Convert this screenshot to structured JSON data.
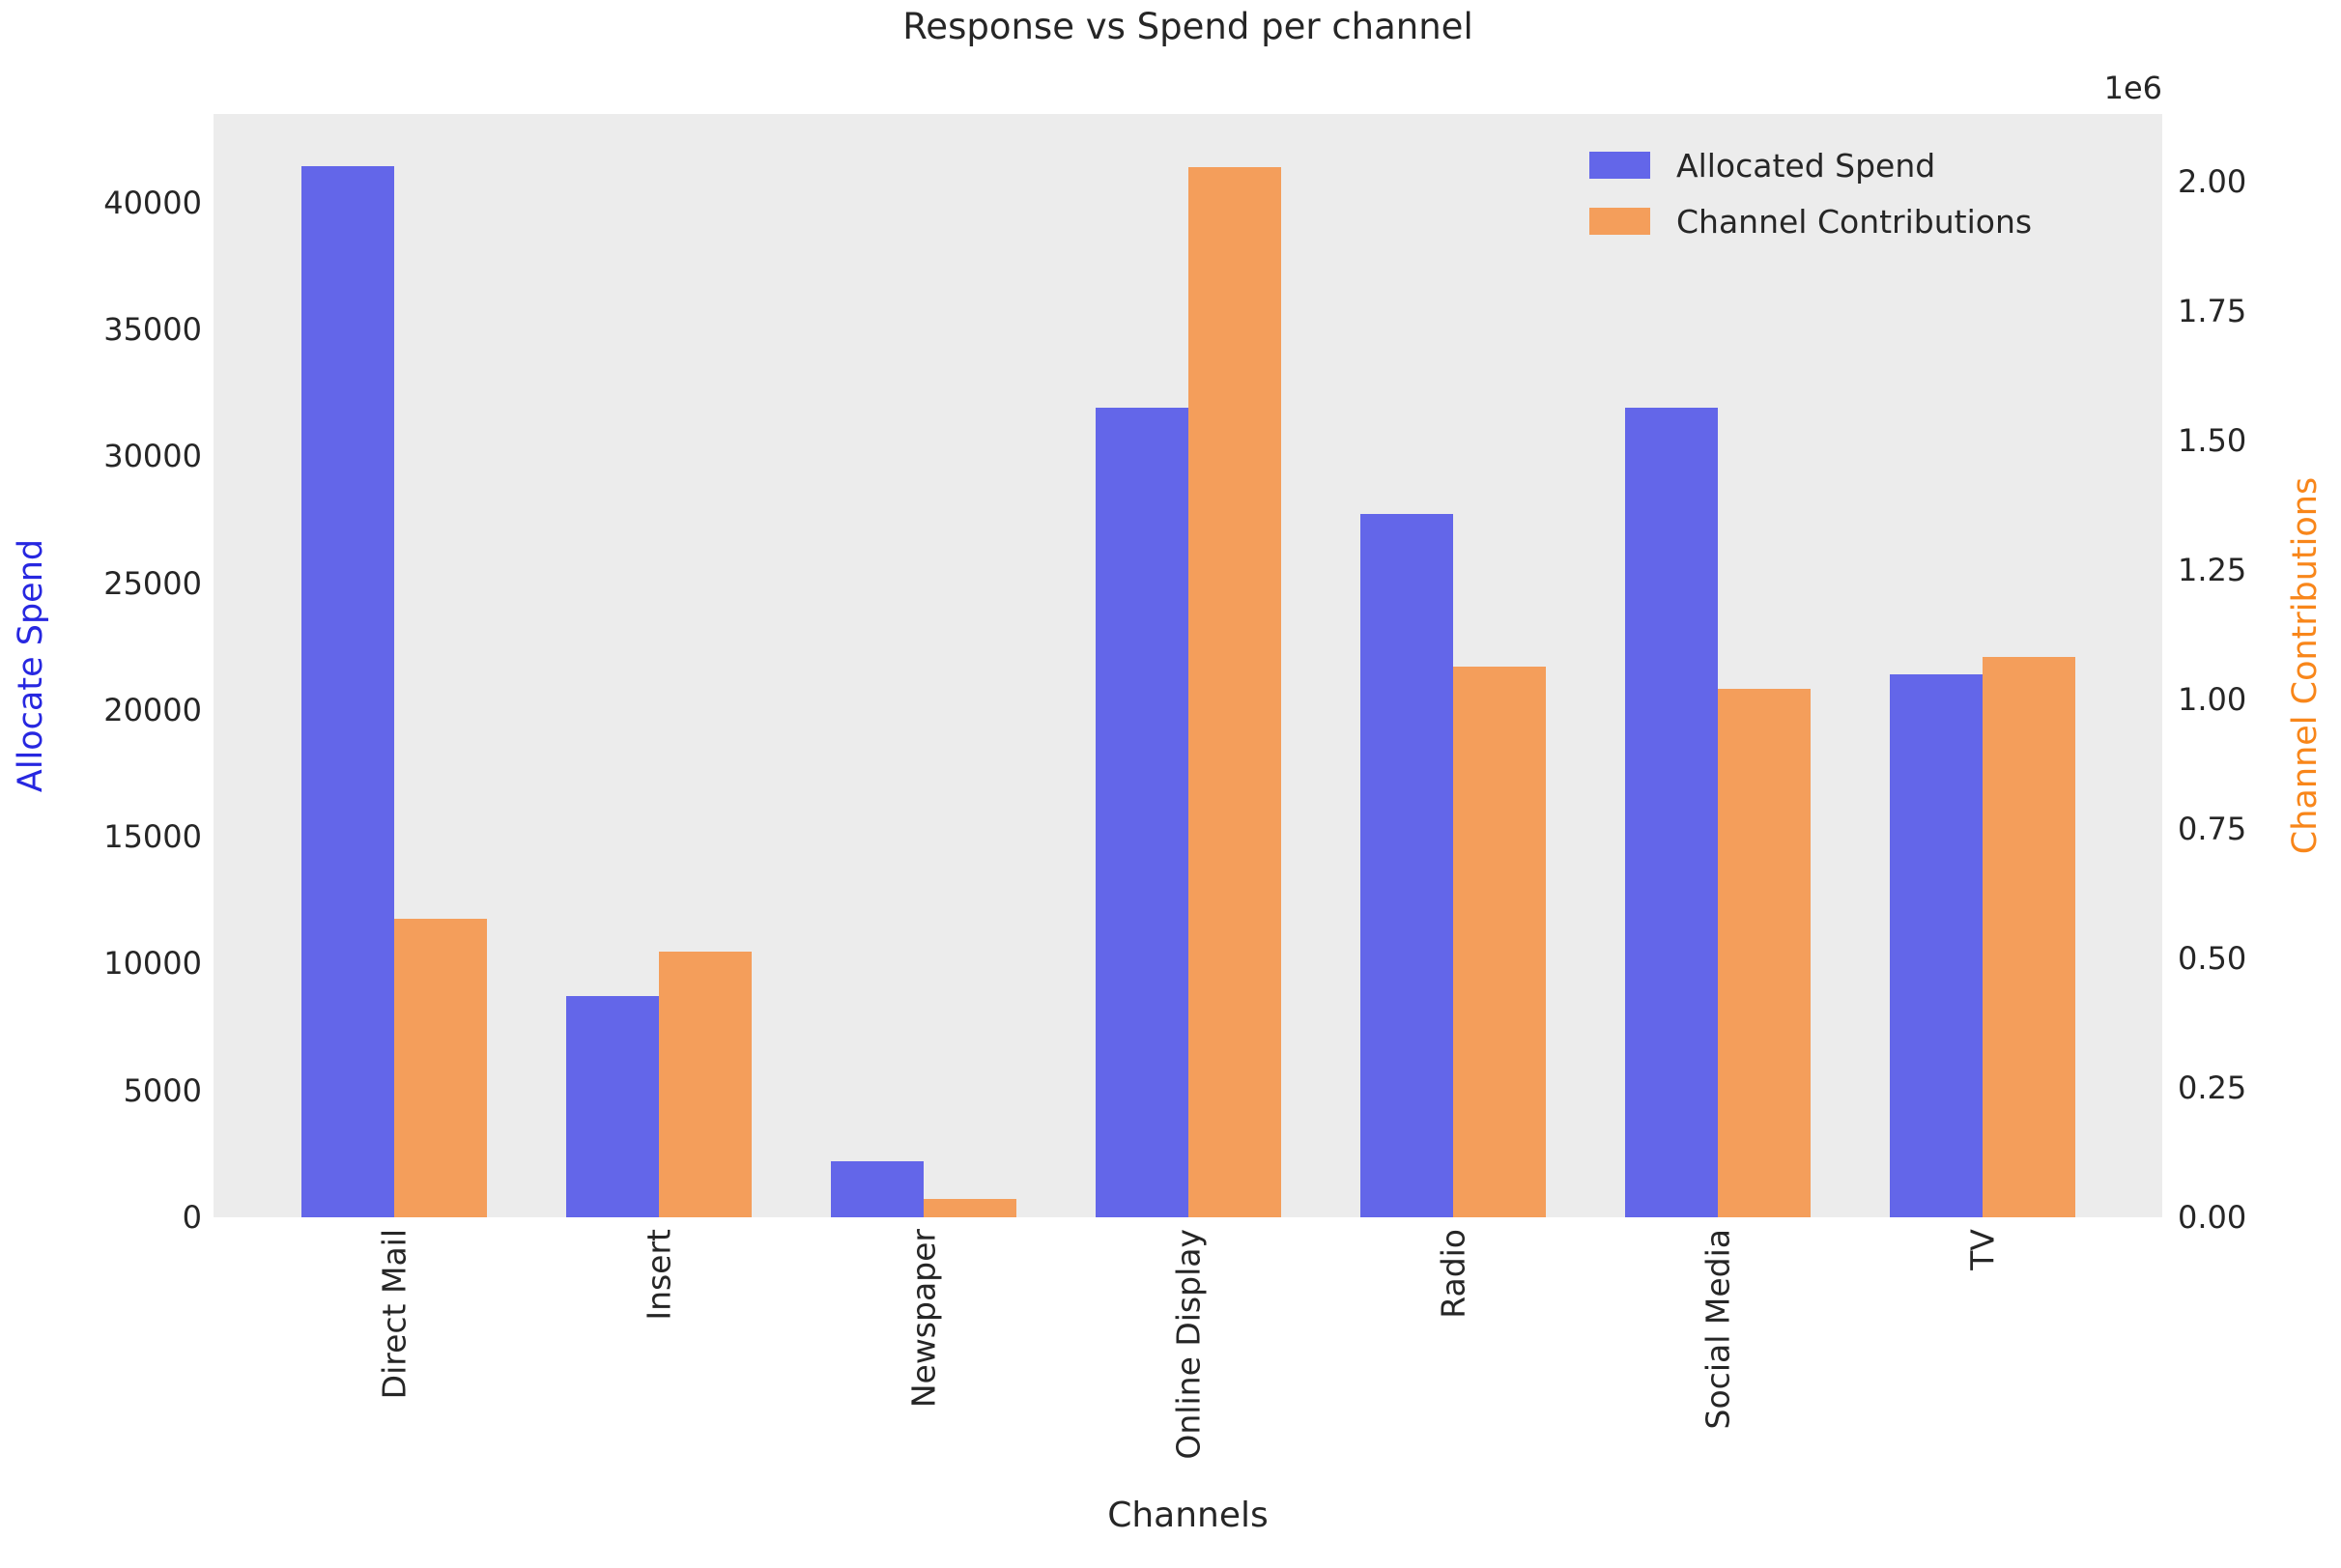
{
  "title": "Response vs Spend per channel",
  "axes": {
    "x_label": "Channels",
    "y_left_label": "Allocate Spend",
    "y_right_label": "Channel Contributions",
    "y_right_offset_text": "1e6",
    "y_left_ticks": [
      {
        "value": 0,
        "label": "0"
      },
      {
        "value": 5000,
        "label": "5000"
      },
      {
        "value": 10000,
        "label": "10000"
      },
      {
        "value": 15000,
        "label": "15000"
      },
      {
        "value": 20000,
        "label": "20000"
      },
      {
        "value": 25000,
        "label": "25000"
      },
      {
        "value": 30000,
        "label": "30000"
      },
      {
        "value": 35000,
        "label": "35000"
      },
      {
        "value": 40000,
        "label": "40000"
      }
    ],
    "y_right_ticks": [
      {
        "value": 0,
        "label": "0.00"
      },
      {
        "value": 250000,
        "label": "0.25"
      },
      {
        "value": 500000,
        "label": "0.50"
      },
      {
        "value": 750000,
        "label": "0.75"
      },
      {
        "value": 1000000,
        "label": "1.00"
      },
      {
        "value": 1250000,
        "label": "1.25"
      },
      {
        "value": 1500000,
        "label": "1.50"
      },
      {
        "value": 1750000,
        "label": "1.75"
      },
      {
        "value": 2000000,
        "label": "2.00"
      }
    ]
  },
  "legend": {
    "items": [
      {
        "label": "Allocated Spend",
        "color": "#6366e9"
      },
      {
        "label": "Channel Contributions",
        "color": "#f49e5b"
      }
    ]
  },
  "colors": {
    "spend_bar": "#6366e9",
    "contribution_bar": "#f49e5b",
    "left_axis_label_color": "#2727e0",
    "right_axis_label_color": "#f8861a",
    "plot_background": "#ececec",
    "text": "#262626"
  },
  "chart_data": {
    "type": "bar",
    "title": "Response vs Spend per channel",
    "xlabel": "Channels",
    "ylabel_left": "Allocate Spend",
    "ylabel_right": "Channel Contributions",
    "categories": [
      "Direct Mail",
      "Insert",
      "Newspaper",
      "Online Display",
      "Radio",
      "Social Media",
      "TV"
    ],
    "series": [
      {
        "name": "Allocated Spend",
        "axis": "left",
        "color": "#6366e9",
        "values": [
          41450,
          8720,
          2210,
          31920,
          27730,
          31920,
          21410
        ]
      },
      {
        "name": "Channel Contributions",
        "axis": "right",
        "color": "#f49e5b",
        "values": [
          576000,
          513000,
          35000,
          2028000,
          1063000,
          1020000,
          1081000
        ]
      }
    ],
    "left_ylim": [
      0,
      43500
    ],
    "right_ylim": [
      0,
      2130000
    ],
    "right_axis_multiplier": 1000000,
    "grid": false,
    "legend_position": "upper right"
  }
}
